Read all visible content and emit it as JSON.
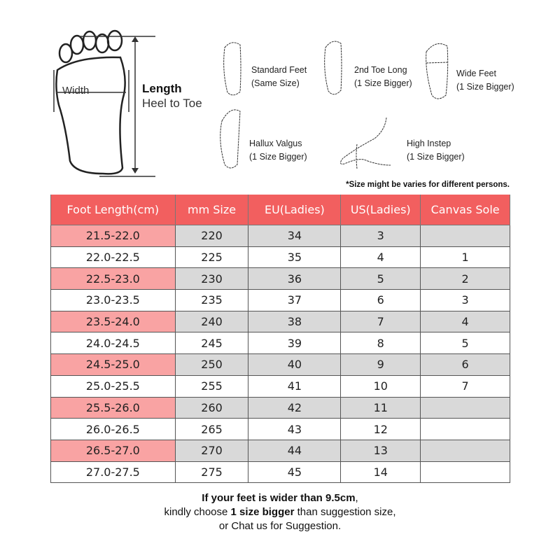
{
  "diagram": {
    "width_label": "Width",
    "length_label": "Length",
    "heel_to_toe_label": "Heel to Toe",
    "foot_types": [
      {
        "name": "Standard Feet",
        "advice": "(Same Size)"
      },
      {
        "name": "2nd Toe Long",
        "advice": "(1 Size Bigger)"
      },
      {
        "name": "Wide Feet",
        "advice": "(1 Size Bigger)"
      },
      {
        "name": "Hallux Valgus",
        "advice": "(1 Size Bigger)"
      },
      {
        "name": "High Instep",
        "advice": "(1 Size Bigger)"
      }
    ]
  },
  "note": "*Size might be varies for different persons.",
  "table": {
    "headers": [
      "Foot Length(cm)",
      "mm Size",
      "EU(Ladies)",
      "US(Ladies)",
      "Canvas Sole"
    ],
    "rows": [
      [
        "21.5-22.0",
        "220",
        "34",
        "3",
        ""
      ],
      [
        "22.0-22.5",
        "225",
        "35",
        "4",
        "1"
      ],
      [
        "22.5-23.0",
        "230",
        "36",
        "5",
        "2"
      ],
      [
        "23.0-23.5",
        "235",
        "37",
        "6",
        "3"
      ],
      [
        "23.5-24.0",
        "240",
        "38",
        "7",
        "4"
      ],
      [
        "24.0-24.5",
        "245",
        "39",
        "8",
        "5"
      ],
      [
        "24.5-25.0",
        "250",
        "40",
        "9",
        "6"
      ],
      [
        "25.0-25.5",
        "255",
        "41",
        "10",
        "7"
      ],
      [
        "25.5-26.0",
        "260",
        "42",
        "11",
        ""
      ],
      [
        "26.0-26.5",
        "265",
        "43",
        "12",
        ""
      ],
      [
        "26.5-27.0",
        "270",
        "44",
        "13",
        ""
      ],
      [
        "27.0-27.5",
        "275",
        "45",
        "14",
        ""
      ]
    ],
    "colors": {
      "header": "#f25f5f",
      "highlight": "#f9a3a3",
      "alt_row": "#d9d9d9"
    }
  },
  "footer": {
    "line1_bold": "If your feet is wider than 9.5cm",
    "line1_rest": ",",
    "line2_pre": "kindly choose ",
    "line2_bold": "1 size bigger",
    "line2_post": " than suggestion size,",
    "line3": "or Chat us for Suggestion."
  }
}
